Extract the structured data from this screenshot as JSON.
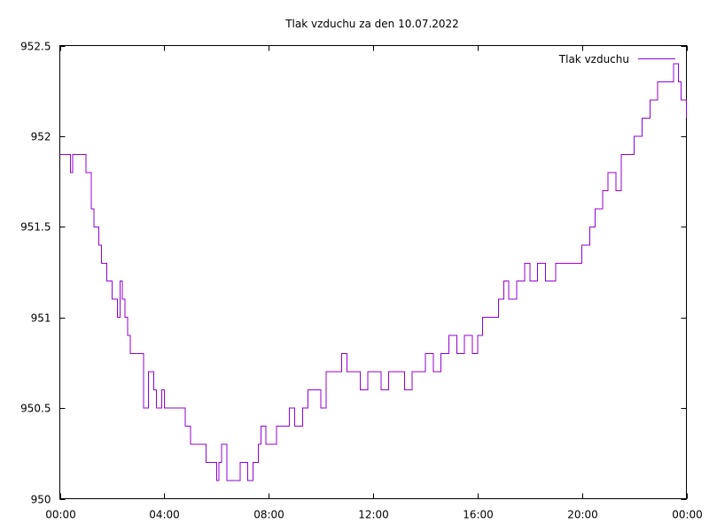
{
  "chart_data": {
    "type": "line",
    "title": "Tlak vzduchu za den 10.07.2022",
    "xlabel": "",
    "ylabel": "",
    "x_ticks": [
      "00:00",
      "04:00",
      "08:00",
      "12:00",
      "16:00",
      "20:00",
      "00:00"
    ],
    "x_tick_hours": [
      0,
      4,
      8,
      12,
      16,
      20,
      24
    ],
    "y_ticks": [
      "950",
      "950.5",
      "951",
      "951.5",
      "952",
      "952.5"
    ],
    "y_tick_values": [
      950,
      950.5,
      951,
      951.5,
      952,
      952.5
    ],
    "xlim": [
      0,
      24
    ],
    "ylim": [
      950,
      952.5
    ],
    "grid": false,
    "legend_position": "top-right",
    "series": [
      {
        "name": "Tlak vzduchu",
        "color": "#9400d3",
        "x_hours": [
          0,
          0.3,
          0.4,
          0.5,
          0.8,
          1.0,
          1.2,
          1.3,
          1.5,
          1.6,
          1.8,
          2.0,
          2.2,
          2.3,
          2.4,
          2.5,
          2.6,
          2.7,
          2.9,
          3.0,
          3.2,
          3.4,
          3.6,
          3.7,
          3.9,
          4.0,
          4.3,
          4.6,
          4.8,
          5.0,
          5.4,
          5.6,
          5.9,
          6.0,
          6.1,
          6.2,
          6.4,
          6.7,
          6.9,
          7.0,
          7.2,
          7.4,
          7.6,
          7.7,
          7.9,
          8.3,
          8.5,
          8.8,
          9.0,
          9.3,
          9.5,
          9.8,
          10.0,
          10.2,
          10.5,
          10.8,
          11.0,
          11.2,
          11.5,
          11.8,
          12.0,
          12.3,
          12.6,
          12.9,
          13.2,
          13.5,
          13.8,
          14.0,
          14.3,
          14.6,
          14.9,
          15.2,
          15.5,
          15.8,
          16.0,
          16.2,
          16.5,
          16.8,
          17.0,
          17.2,
          17.5,
          17.8,
          18.0,
          18.3,
          18.6,
          19.0,
          19.5,
          19.8,
          20.0,
          20.3,
          20.5,
          20.8,
          21.0,
          21.3,
          21.5,
          21.8,
          22.0,
          22.3,
          22.6,
          22.9,
          23.2,
          23.5,
          23.7,
          23.8,
          24.0
        ],
        "values": [
          951.9,
          951.9,
          951.8,
          951.9,
          951.9,
          951.8,
          951.6,
          951.5,
          951.4,
          951.3,
          951.2,
          951.1,
          951.0,
          951.2,
          951.1,
          951.0,
          950.9,
          950.8,
          950.8,
          950.8,
          950.5,
          950.7,
          950.6,
          950.5,
          950.6,
          950.5,
          950.5,
          950.5,
          950.4,
          950.3,
          950.3,
          950.2,
          950.2,
          950.1,
          950.2,
          950.3,
          950.1,
          950.1,
          950.2,
          950.2,
          950.1,
          950.2,
          950.3,
          950.4,
          950.3,
          950.4,
          950.4,
          950.5,
          950.4,
          950.5,
          950.6,
          950.6,
          950.5,
          950.7,
          950.7,
          950.8,
          950.7,
          950.7,
          950.6,
          950.7,
          950.7,
          950.6,
          950.7,
          950.7,
          950.6,
          950.7,
          950.7,
          950.8,
          950.7,
          950.8,
          950.9,
          950.8,
          950.9,
          950.8,
          950.9,
          951.0,
          951.0,
          951.1,
          951.2,
          951.1,
          951.2,
          951.3,
          951.2,
          951.3,
          951.2,
          951.3,
          951.3,
          951.3,
          951.4,
          951.5,
          951.6,
          951.7,
          951.8,
          951.7,
          951.9,
          951.9,
          952.0,
          952.1,
          952.2,
          952.3,
          952.3,
          952.4,
          952.3,
          952.2,
          952.1
        ]
      }
    ]
  }
}
